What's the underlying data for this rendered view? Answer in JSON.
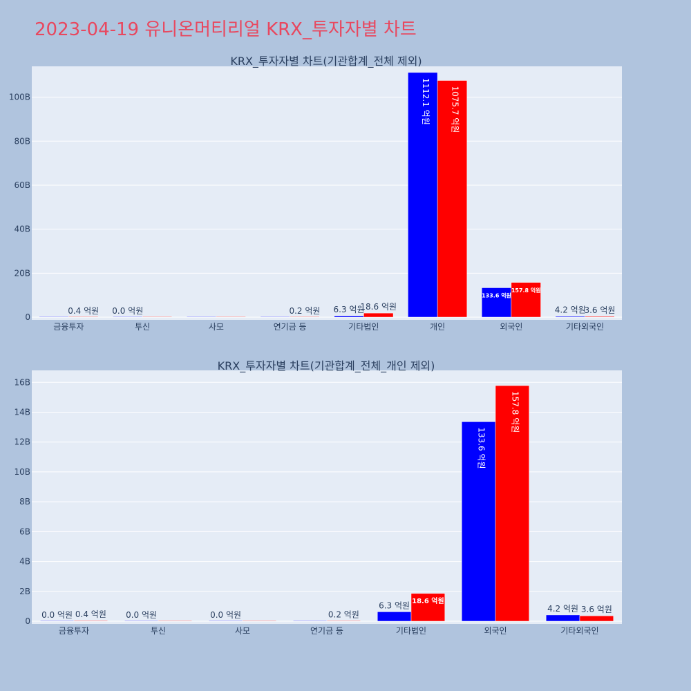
{
  "page_title": "2023-04-19 유니온머티리얼 KRX_투자자별 차트",
  "colors": {
    "background": "#b0c4de",
    "plot_bg": "#e5ecf6",
    "title": "#e8485f",
    "sell": "#0000ff",
    "buy": "#ff0000"
  },
  "chart_data": [
    {
      "type": "bar",
      "title": "KRX_투자자별 차트(기관합계_전체 제외)",
      "categories": [
        "금융투자",
        "투신",
        "사모",
        "연기금 등",
        "기타법인",
        "개인",
        "외국인",
        "기타외국인"
      ],
      "series": [
        {
          "color": "#0000ff",
          "values": [
            0.0,
            0.0,
            0.0,
            0.0,
            0.63,
            111.21,
            13.36,
            0.42
          ],
          "labels": [
            "",
            "0.0 억원",
            "",
            "",
            "6.3 억원",
            "1112.1 억원",
            "133.6 억원",
            "4.2 억원"
          ]
        },
        {
          "color": "#ff0000",
          "values": [
            0.04,
            0.0,
            0.0,
            0.02,
            1.86,
            107.57,
            15.78,
            0.36
          ],
          "labels": [
            "0.4 억원",
            "",
            "",
            "0.2 억원",
            "18.6 억원",
            "1075.7 억원",
            "157.8 억원",
            "3.6 억원"
          ]
        }
      ],
      "yticks": [
        0,
        20,
        40,
        60,
        80,
        100
      ],
      "ytick_labels": [
        "0",
        "20B",
        "40B",
        "60B",
        "80B",
        "100B"
      ],
      "ylim": [
        0,
        114
      ],
      "grid": true
    },
    {
      "type": "bar",
      "title": "KRX_투자자별 차트(기관합계_전체_개인 제외)",
      "categories": [
        "금융투자",
        "투신",
        "사모",
        "연기금 등",
        "기타법인",
        "외국인",
        "기타외국인"
      ],
      "series": [
        {
          "color": "#0000ff",
          "values": [
            0.0,
            0.0,
            0.0,
            0.0,
            0.63,
            13.36,
            0.42
          ],
          "labels": [
            "0.0 억원",
            "0.0 억원",
            "0.0 억원",
            "",
            "6.3 억원",
            "133.6 억원",
            "4.2 억원"
          ]
        },
        {
          "color": "#ff0000",
          "values": [
            0.04,
            0.0,
            0.0,
            0.02,
            1.86,
            15.78,
            0.36
          ],
          "labels": [
            "0.4 억원",
            "",
            "",
            "0.2 억원",
            "18.6 억원",
            "157.8 억원",
            "3.6 억원"
          ]
        }
      ],
      "yticks": [
        0,
        2,
        4,
        6,
        8,
        10,
        12,
        14,
        16
      ],
      "ytick_labels": [
        "0",
        "2B",
        "4B",
        "6B",
        "8B",
        "10B",
        "12B",
        "14B",
        "16B"
      ],
      "ylim": [
        0,
        16.8
      ],
      "grid": true
    }
  ]
}
